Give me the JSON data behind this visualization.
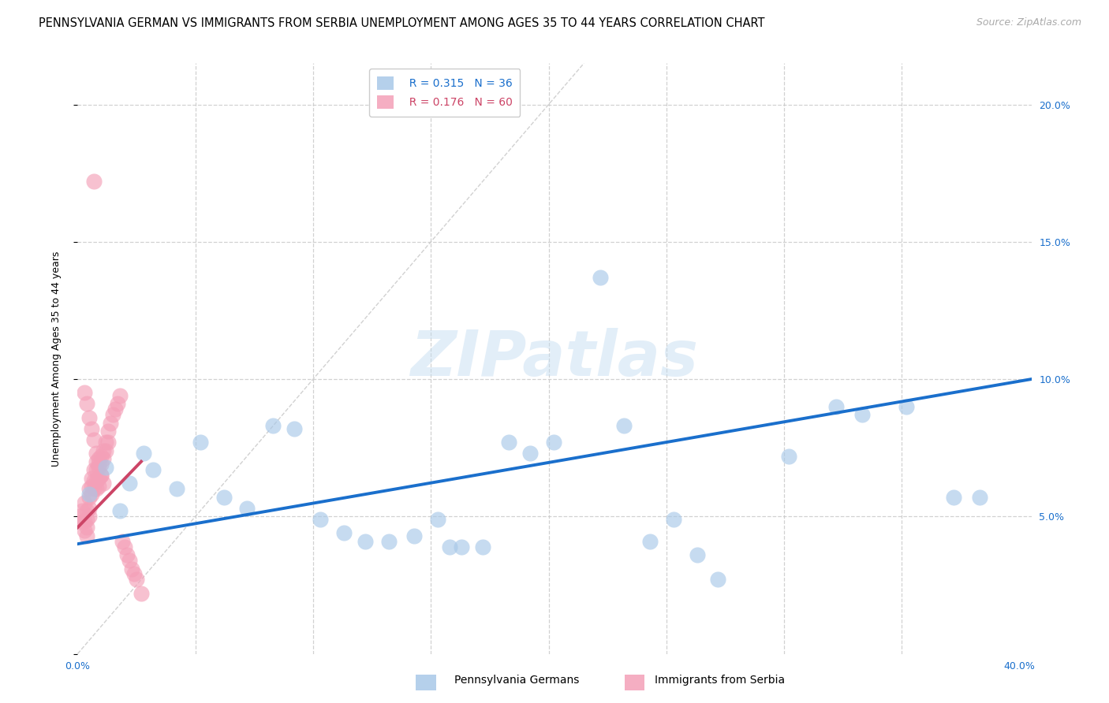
{
  "title": "PENNSYLVANIA GERMAN VS IMMIGRANTS FROM SERBIA UNEMPLOYMENT AMONG AGES 35 TO 44 YEARS CORRELATION CHART",
  "source": "Source: ZipAtlas.com",
  "ylabel": "Unemployment Among Ages 35 to 44 years",
  "xlim": [
    0.0,
    0.405
  ],
  "ylim": [
    0.0,
    0.215
  ],
  "blue_scatter_x": [
    0.005,
    0.012,
    0.018,
    0.022,
    0.028,
    0.032,
    0.042,
    0.052,
    0.062,
    0.072,
    0.083,
    0.092,
    0.103,
    0.113,
    0.122,
    0.132,
    0.143,
    0.153,
    0.158,
    0.163,
    0.172,
    0.183,
    0.192,
    0.202,
    0.222,
    0.232,
    0.243,
    0.253,
    0.263,
    0.272,
    0.302,
    0.322,
    0.333,
    0.352,
    0.372,
    0.383
  ],
  "blue_scatter_y": [
    0.058,
    0.068,
    0.052,
    0.062,
    0.073,
    0.067,
    0.06,
    0.077,
    0.057,
    0.053,
    0.083,
    0.082,
    0.049,
    0.044,
    0.041,
    0.041,
    0.043,
    0.049,
    0.039,
    0.039,
    0.039,
    0.077,
    0.073,
    0.077,
    0.137,
    0.083,
    0.041,
    0.049,
    0.036,
    0.027,
    0.072,
    0.09,
    0.087,
    0.09,
    0.057,
    0.057
  ],
  "pink_scatter_x": [
    0.001,
    0.002,
    0.002,
    0.003,
    0.003,
    0.003,
    0.004,
    0.004,
    0.004,
    0.004,
    0.005,
    0.005,
    0.005,
    0.005,
    0.006,
    0.006,
    0.006,
    0.007,
    0.007,
    0.007,
    0.008,
    0.008,
    0.008,
    0.008,
    0.009,
    0.009,
    0.009,
    0.009,
    0.01,
    0.01,
    0.01,
    0.011,
    0.011,
    0.012,
    0.012,
    0.013,
    0.013,
    0.014,
    0.015,
    0.016,
    0.017,
    0.018,
    0.019,
    0.02,
    0.021,
    0.022,
    0.023,
    0.024,
    0.025,
    0.027,
    0.003,
    0.004,
    0.005,
    0.006,
    0.007,
    0.008,
    0.009,
    0.01,
    0.011,
    0.007
  ],
  "pink_scatter_y": [
    0.05,
    0.048,
    0.052,
    0.055,
    0.048,
    0.045,
    0.052,
    0.049,
    0.046,
    0.043,
    0.06,
    0.057,
    0.053,
    0.05,
    0.064,
    0.061,
    0.058,
    0.067,
    0.063,
    0.06,
    0.07,
    0.067,
    0.063,
    0.06,
    0.071,
    0.068,
    0.064,
    0.061,
    0.072,
    0.069,
    0.065,
    0.074,
    0.071,
    0.077,
    0.074,
    0.081,
    0.077,
    0.084,
    0.087,
    0.089,
    0.091,
    0.094,
    0.041,
    0.039,
    0.036,
    0.034,
    0.031,
    0.029,
    0.027,
    0.022,
    0.095,
    0.091,
    0.086,
    0.082,
    0.078,
    0.073,
    0.069,
    0.065,
    0.062,
    0.172
  ],
  "blue_color": "#a8c8e8",
  "pink_color": "#f4a0b8",
  "blue_line_color": "#1a6fcc",
  "pink_line_color": "#cc4466",
  "diagonal_color": "#cccccc",
  "grid_color": "#cccccc",
  "watermark": "ZIPatlas",
  "legend_blue_r": "R = 0.315",
  "legend_blue_n": "N = 36",
  "legend_pink_r": "R = 0.176",
  "legend_pink_n": "N = 60",
  "legend_label_blue": "Pennsylvania Germans",
  "legend_label_pink": "Immigrants from Serbia",
  "title_fontsize": 10.5,
  "source_fontsize": 9,
  "axis_fontsize": 9,
  "tick_fontsize": 9,
  "legend_fontsize": 10,
  "blue_line_x0": 0.0,
  "blue_line_x1": 0.405,
  "blue_line_y0": 0.04,
  "blue_line_y1": 0.1,
  "pink_line_x0": 0.0,
  "pink_line_x1": 0.027,
  "pink_line_y0": 0.046,
  "pink_line_y1": 0.07
}
